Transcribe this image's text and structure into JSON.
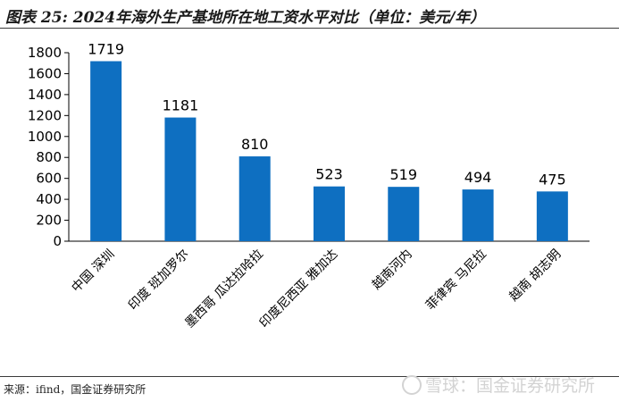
{
  "title": "图表 25: 2024年海外生产基地所在地工资水平对比（单位：美元/年）",
  "source": "来源：ifind，国金证券研究所",
  "watermark": "雪球：国金证券研究所",
  "chart_data": {
    "type": "bar",
    "categories": [
      "中国 深圳",
      "印度 班加罗尔",
      "墨西哥 瓜达拉哈拉",
      "印度尼西亚 雅加达",
      "越南河内",
      "菲律宾 马尼拉",
      "越南 胡志明"
    ],
    "values": [
      1719,
      1181,
      810,
      523,
      519,
      494,
      475
    ],
    "data_labels": [
      "1719",
      "1181",
      "810",
      "523",
      "519",
      "494",
      "475"
    ],
    "ylim": [
      0,
      1800
    ],
    "yticks": [
      "0",
      "200",
      "400",
      "600",
      "800",
      "1000",
      "1200",
      "1400",
      "1600",
      "1800"
    ],
    "bar_color": "#0e6fc1",
    "grid": false,
    "legend": "none"
  }
}
